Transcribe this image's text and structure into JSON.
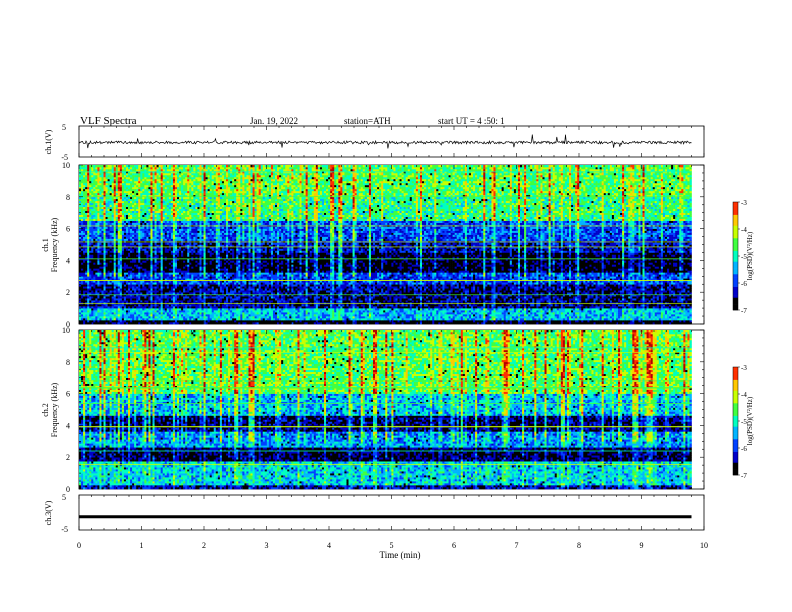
{
  "header": {
    "title": "VLF  Spectra",
    "date": "Jan. 19, 2022",
    "station": "station=ATH",
    "start": "start  UT  =   4  :50: 1"
  },
  "chart_data": [
    {
      "type": "line",
      "panel": "ch1-waveform",
      "ylabel": "ch.1(V)",
      "ylim": [
        -5,
        5
      ],
      "yticks": [
        "5",
        "-5"
      ],
      "xlim": [
        0,
        10
      ],
      "baseline": -0.3
    },
    {
      "type": "heatmap",
      "panel": "ch1-spectrogram",
      "ylabel": "ch.1\nFrequency (kHz)",
      "ylabel_top": "ch.1",
      "ylabel_main": "Frequency (kHz)",
      "ylim": [
        0,
        10
      ],
      "yticks": [
        "0",
        "2",
        "4",
        "6",
        "8",
        "10"
      ],
      "xlim": [
        0,
        9.8
      ],
      "colorbar": {
        "label": "log(PSD)(V²/Hz)",
        "range": [
          -7,
          -3
        ],
        "ticks": [
          "-3",
          "-4",
          "-5",
          "-6",
          "-7"
        ]
      },
      "bands_log_psd": [
        {
          "f": [
            0,
            0.3
          ],
          "v": -6.9
        },
        {
          "f": [
            0.3,
            1.0
          ],
          "v": -5.4
        },
        {
          "f": [
            1.0,
            2.5
          ],
          "v": -6.5
        },
        {
          "f": [
            2.5,
            3.2
          ],
          "v": -6.0
        },
        {
          "f": [
            3.2,
            4.5
          ],
          "v": -6.8
        },
        {
          "f": [
            4.5,
            5.2
          ],
          "v": -6.3
        },
        {
          "f": [
            5.2,
            6.5
          ],
          "v": -5.9
        },
        {
          "f": [
            6.5,
            8.0
          ],
          "v": -4.8
        },
        {
          "f": [
            8.0,
            10.0
          ],
          "v": -4.6
        }
      ]
    },
    {
      "type": "heatmap",
      "panel": "ch2-spectrogram",
      "ylabel": "ch.2\nFrequency (kHz)",
      "ylabel_top": "ch.2",
      "ylabel_main": "Frequency (kHz)",
      "ylim": [
        0,
        10
      ],
      "yticks": [
        "0",
        "2",
        "4",
        "6",
        "8",
        "10"
      ],
      "xlim": [
        0,
        9.8
      ],
      "colorbar": {
        "label": "log(PSD)(V²/Hz)",
        "range": [
          -7,
          -3
        ],
        "ticks": [
          "-3",
          "-4",
          "-5",
          "-6",
          "-7"
        ]
      },
      "bands_log_psd": [
        {
          "f": [
            0,
            0.3
          ],
          "v": -6.4
        },
        {
          "f": [
            0.3,
            1.8
          ],
          "v": -5.3
        },
        {
          "f": [
            1.8,
            2.6
          ],
          "v": -6.7
        },
        {
          "f": [
            2.6,
            3.6
          ],
          "v": -5.6
        },
        {
          "f": [
            3.6,
            4.6
          ],
          "v": -6.6
        },
        {
          "f": [
            4.6,
            6.0
          ],
          "v": -5.4
        },
        {
          "f": [
            6.0,
            10.0
          ],
          "v": -4.6
        }
      ]
    },
    {
      "type": "line",
      "panel": "ch3-waveform",
      "ylabel": "ch.3(V)",
      "ylim": [
        -5,
        5
      ],
      "yticks": [
        "5",
        "-5"
      ],
      "xlim": [
        0,
        10
      ],
      "baseline": -1.2,
      "xlabel": "Time  (min)",
      "xticks": [
        "0",
        "1",
        "2",
        "3",
        "4",
        "5",
        "6",
        "7",
        "8",
        "9",
        "10"
      ]
    }
  ],
  "colors": {
    "scale": [
      "#000000",
      "#0000c8",
      "#0040ff",
      "#00b4ff",
      "#00ffc0",
      "#40ff40",
      "#c8ff00",
      "#ffc800",
      "#ff3000",
      "#b40000",
      "#ffffff"
    ]
  }
}
